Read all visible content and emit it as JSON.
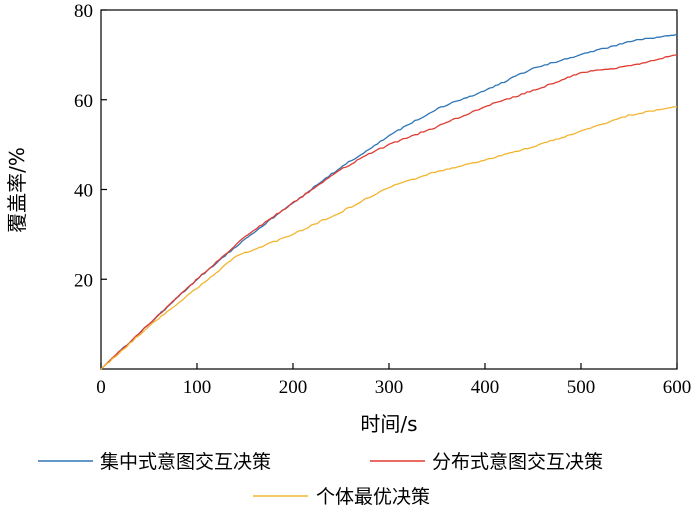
{
  "chart_data": {
    "type": "line",
    "xlabel": "时间/s",
    "ylabel": "覆盖率/%",
    "xlim": [
      0,
      600
    ],
    "ylim": [
      0,
      80
    ],
    "xticks": [
      0,
      100,
      200,
      300,
      400,
      500,
      600
    ],
    "yticks": [
      20,
      40,
      60,
      80
    ],
    "grid": false,
    "legend_position": "bottom",
    "series": [
      {
        "name": "集中式意图交互决策",
        "color": "#2e75b6",
        "x": [
          0,
          50,
          100,
          150,
          200,
          250,
          280,
          300,
          350,
          400,
          450,
          500,
          550,
          600
        ],
        "y": [
          0,
          10,
          20,
          29,
          37,
          45,
          49,
          52,
          58,
          62,
          67,
          70,
          73,
          74.5
        ]
      },
      {
        "name": "分布式意图交互决策",
        "color": "#e03c31",
        "x": [
          0,
          50,
          100,
          150,
          200,
          250,
          280,
          300,
          350,
          400,
          450,
          500,
          550,
          600
        ],
        "y": [
          0,
          10,
          20,
          29.5,
          37,
          44.5,
          48,
          50,
          54,
          58.5,
          62,
          66,
          67.5,
          70
        ]
      },
      {
        "name": "个体最优决策",
        "color": "#f2b531",
        "x": [
          0,
          50,
          100,
          140,
          200,
          250,
          300,
          350,
          400,
          450,
          500,
          550,
          600
        ],
        "y": [
          0,
          9.5,
          18,
          25,
          30,
          35,
          40.5,
          44,
          46.5,
          49.5,
          53,
          56.5,
          58.5
        ]
      }
    ]
  }
}
